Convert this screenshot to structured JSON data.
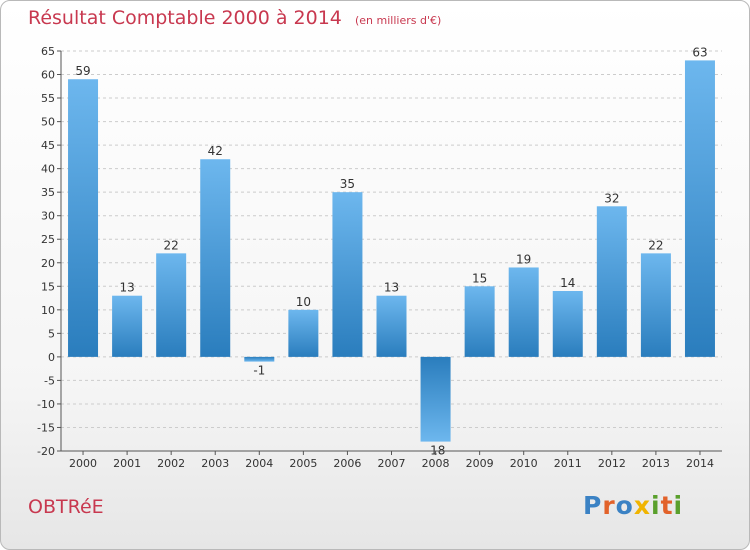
{
  "header": {
    "title": "Résultat Comptable 2000 à 2014",
    "subtitle": "(en milliers d'€)"
  },
  "commune": "OBTRéE",
  "logo": {
    "text": "Proxiti",
    "letters": [
      {
        "char": "P",
        "color": "#3b82c4"
      },
      {
        "char": "r",
        "color": "#e2622a"
      },
      {
        "char": "o",
        "color": "#3b82c4"
      },
      {
        "char": "x",
        "color": "#f0b400"
      },
      {
        "char": "i",
        "color": "#5aa02c"
      },
      {
        "char": "t",
        "color": "#e2622a"
      },
      {
        "char": "i",
        "color": "#5aa02c"
      }
    ]
  },
  "colors": {
    "bar_light": "#6db7ee",
    "bar_dark": "#2a7dbd",
    "text_accent": "#c8384f",
    "grid": "#cccccc",
    "axis": "#555555"
  },
  "chart_data": {
    "type": "bar",
    "title": "Résultat Comptable 2000 à 2014",
    "subtitle": "(en milliers d'€)",
    "xlabel": "",
    "ylabel": "",
    "ylim": [
      -20,
      65
    ],
    "yticks": [
      -20,
      -15,
      -10,
      -5,
      0,
      5,
      10,
      15,
      20,
      25,
      30,
      35,
      40,
      45,
      50,
      55,
      60,
      65
    ],
    "grid": true,
    "categories": [
      "2000",
      "2001",
      "2002",
      "2003",
      "2004",
      "2005",
      "2006",
      "2007",
      "2008",
      "2009",
      "2010",
      "2011",
      "2012",
      "2013",
      "2014"
    ],
    "values": [
      59,
      13,
      22,
      42,
      -1,
      10,
      35,
      13,
      -18,
      15,
      19,
      14,
      32,
      22,
      63
    ],
    "labels": [
      "59",
      "13",
      "22",
      "42",
      "-1",
      "10",
      "35",
      "13",
      "-18",
      "15",
      "19",
      "14",
      "32",
      "22",
      "63"
    ]
  }
}
